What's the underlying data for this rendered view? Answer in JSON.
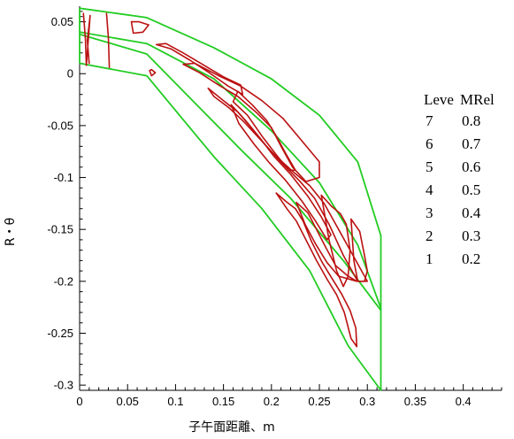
{
  "chart_data": {
    "type": "contour",
    "xlabel": "子午面距離、m",
    "ylabel": "R・θ",
    "xlim": [
      0,
      0.44
    ],
    "ylim": [
      -0.305,
      0.065
    ],
    "x_ticks": [
      0,
      0.05,
      0.1,
      0.15,
      0.2,
      0.25,
      0.3,
      0.35,
      0.4
    ],
    "y_ticks": [
      0.05,
      0,
      -0.05,
      -0.1,
      -0.15,
      -0.2,
      -0.25,
      -0.3
    ],
    "x_tick_labels": [
      "0",
      "0.05",
      "0.1",
      "0.15",
      "0.2",
      "0.25",
      "0.3",
      "0.35",
      "0.4"
    ],
    "y_tick_labels": [
      "0.05",
      "0",
      "-0.05",
      "-0.1",
      "-0.15",
      "-0.2",
      "-0.25",
      "-0.3"
    ],
    "legend": {
      "headers": [
        "Leve",
        "MRel"
      ],
      "rows": [
        {
          "level": "7",
          "value": "0.8"
        },
        {
          "level": "6",
          "value": "0.7"
        },
        {
          "level": "5",
          "value": "0.6"
        },
        {
          "level": "4",
          "value": "0.5"
        },
        {
          "level": "3",
          "value": "0.4"
        },
        {
          "level": "2",
          "value": "0.3"
        },
        {
          "level": "1",
          "value": "0.2"
        }
      ]
    },
    "colors": {
      "boundary": "#22cc22",
      "contour": "#bb1111"
    },
    "boundaries": [
      {
        "name": "blade-passage-1",
        "points": [
          [
            0,
            0.063
          ],
          [
            0.07,
            0.054
          ],
          [
            0.14,
            0.025
          ],
          [
            0.2,
            -0.005
          ],
          [
            0.25,
            -0.04
          ],
          [
            0.29,
            -0.085
          ],
          [
            0.3141,
            -0.156
          ],
          [
            0.3141,
            -0.228
          ],
          [
            0.275,
            -0.18
          ],
          [
            0.22,
            -0.12
          ],
          [
            0.17,
            -0.075
          ],
          [
            0.12,
            -0.028
          ],
          [
            0.07,
            0.019
          ],
          [
            0,
            0.038
          ]
        ]
      },
      {
        "name": "blade-passage-2",
        "points": [
          [
            0,
            0.04
          ],
          [
            0.07,
            0.029
          ],
          [
            0.14,
            -0.005
          ],
          [
            0.2,
            -0.055
          ],
          [
            0.25,
            -0.105
          ],
          [
            0.29,
            -0.165
          ],
          [
            0.3141,
            -0.226
          ],
          [
            0.3141,
            -0.305
          ],
          [
            0.28,
            -0.262
          ],
          [
            0.24,
            -0.19
          ],
          [
            0.19,
            -0.13
          ],
          [
            0.14,
            -0.08
          ],
          [
            0.07,
            -0.002
          ],
          [
            0,
            0.01
          ]
        ]
      },
      {
        "name": "inlet-line",
        "points": [
          [
            0,
            0.063
          ],
          [
            0,
            0.01
          ]
        ]
      }
    ],
    "contours": [
      {
        "level": 2,
        "points": [
          [
            0.004,
            0.058
          ],
          [
            0.006,
            0.034
          ],
          [
            0.007,
            0.008
          ],
          [
            0.011,
            0.056
          ],
          [
            0.008,
            0.032
          ],
          [
            0.01,
            0.01
          ]
        ]
      },
      {
        "level": 3,
        "points": [
          [
            0.028,
            0.058
          ],
          [
            0.03,
            0.035
          ],
          [
            0.031,
            0.006
          ]
        ]
      },
      {
        "level": 4,
        "points": [
          [
            0.054,
            0.05
          ],
          [
            0.056,
            0.039
          ],
          [
            0.066,
            0.04
          ],
          [
            0.072,
            0.047
          ],
          [
            0.062,
            0.05
          ],
          [
            0.054,
            0.05
          ]
        ]
      },
      {
        "level": 5,
        "points": [
          [
            0.08,
            0.028
          ],
          [
            0.095,
            0.024
          ],
          [
            0.115,
            0.013
          ],
          [
            0.135,
            0.001
          ],
          [
            0.155,
            -0.012
          ],
          [
            0.17,
            -0.02
          ],
          [
            0.168,
            -0.011
          ],
          [
            0.15,
            -0.003
          ],
          [
            0.128,
            0.009
          ],
          [
            0.108,
            0.02
          ],
          [
            0.09,
            0.029
          ],
          [
            0.08,
            0.028
          ]
        ]
      },
      {
        "level": 6,
        "points": [
          [
            0.073,
            0.003
          ],
          [
            0.075,
            -0.002
          ],
          [
            0.079,
            0.001
          ],
          [
            0.075,
            0.004
          ],
          [
            0.073,
            0.003
          ]
        ]
      },
      {
        "level": 5,
        "points": [
          [
            0.108,
            0.009
          ],
          [
            0.125,
            0.001
          ],
          [
            0.145,
            -0.011
          ],
          [
            0.165,
            -0.022
          ],
          [
            0.185,
            -0.038
          ],
          [
            0.2,
            -0.052
          ],
          [
            0.21,
            -0.07
          ],
          [
            0.222,
            -0.09
          ],
          [
            0.236,
            -0.104
          ],
          [
            0.25,
            -0.1
          ],
          [
            0.25,
            -0.085
          ],
          [
            0.232,
            -0.065
          ],
          [
            0.212,
            -0.043
          ],
          [
            0.19,
            -0.026
          ],
          [
            0.168,
            -0.012
          ],
          [
            0.145,
            -0.002
          ],
          [
            0.12,
            0.01
          ],
          [
            0.108,
            0.009
          ]
        ]
      },
      {
        "level": 4,
        "points": [
          [
            0.165,
            -0.017
          ],
          [
            0.18,
            -0.03
          ],
          [
            0.195,
            -0.045
          ],
          [
            0.205,
            -0.06
          ],
          [
            0.215,
            -0.077
          ],
          [
            0.225,
            -0.093
          ],
          [
            0.218,
            -0.093
          ],
          [
            0.205,
            -0.078
          ],
          [
            0.19,
            -0.06
          ],
          [
            0.175,
            -0.04
          ],
          [
            0.16,
            -0.027
          ],
          [
            0.165,
            -0.017
          ]
        ]
      },
      {
        "level": 4,
        "points": [
          [
            0.134,
            -0.014
          ],
          [
            0.15,
            -0.026
          ],
          [
            0.165,
            -0.037
          ],
          [
            0.18,
            -0.053
          ],
          [
            0.195,
            -0.07
          ],
          [
            0.212,
            -0.087
          ],
          [
            0.23,
            -0.104
          ],
          [
            0.245,
            -0.12
          ],
          [
            0.26,
            -0.145
          ],
          [
            0.275,
            -0.175
          ],
          [
            0.29,
            -0.2
          ],
          [
            0.3,
            -0.2
          ],
          [
            0.285,
            -0.175
          ],
          [
            0.27,
            -0.15
          ],
          [
            0.255,
            -0.125
          ],
          [
            0.24,
            -0.108
          ],
          [
            0.222,
            -0.094
          ],
          [
            0.203,
            -0.078
          ],
          [
            0.188,
            -0.063
          ],
          [
            0.172,
            -0.047
          ],
          [
            0.156,
            -0.033
          ],
          [
            0.14,
            -0.022
          ],
          [
            0.134,
            -0.014
          ]
        ]
      },
      {
        "level": 3,
        "points": [
          [
            0.158,
            -0.03
          ],
          [
            0.173,
            -0.045
          ],
          [
            0.188,
            -0.062
          ],
          [
            0.203,
            -0.08
          ],
          [
            0.22,
            -0.097
          ],
          [
            0.238,
            -0.118
          ],
          [
            0.252,
            -0.138
          ],
          [
            0.262,
            -0.155
          ],
          [
            0.258,
            -0.16
          ],
          [
            0.246,
            -0.142
          ],
          [
            0.232,
            -0.123
          ],
          [
            0.215,
            -0.103
          ],
          [
            0.198,
            -0.086
          ],
          [
            0.182,
            -0.068
          ],
          [
            0.166,
            -0.048
          ],
          [
            0.158,
            -0.03
          ]
        ]
      },
      {
        "level": 5,
        "points": [
          [
            0.252,
            -0.117
          ],
          [
            0.263,
            -0.128
          ],
          [
            0.272,
            -0.135
          ],
          [
            0.278,
            -0.145
          ],
          [
            0.282,
            -0.17
          ],
          [
            0.28,
            -0.195
          ],
          [
            0.275,
            -0.205
          ],
          [
            0.268,
            -0.19
          ],
          [
            0.26,
            -0.16
          ],
          [
            0.252,
            -0.117
          ]
        ]
      },
      {
        "level": 4,
        "points": [
          [
            0.283,
            -0.14
          ],
          [
            0.292,
            -0.152
          ],
          [
            0.297,
            -0.175
          ],
          [
            0.3,
            -0.19
          ],
          [
            0.297,
            -0.2
          ],
          [
            0.29,
            -0.2
          ],
          [
            0.286,
            -0.18
          ],
          [
            0.283,
            -0.14
          ]
        ]
      },
      {
        "level": 3,
        "points": [
          [
            0.205,
            -0.115
          ],
          [
            0.215,
            -0.123
          ],
          [
            0.225,
            -0.13
          ],
          [
            0.233,
            -0.142
          ],
          [
            0.242,
            -0.162
          ],
          [
            0.253,
            -0.182
          ],
          [
            0.263,
            -0.197
          ],
          [
            0.273,
            -0.212
          ],
          [
            0.282,
            -0.228
          ],
          [
            0.288,
            -0.245
          ],
          [
            0.289,
            -0.263
          ],
          [
            0.283,
            -0.255
          ],
          [
            0.276,
            -0.23
          ],
          [
            0.268,
            -0.213
          ],
          [
            0.258,
            -0.198
          ],
          [
            0.247,
            -0.18
          ],
          [
            0.236,
            -0.16
          ],
          [
            0.226,
            -0.142
          ],
          [
            0.216,
            -0.13
          ],
          [
            0.205,
            -0.115
          ]
        ]
      },
      {
        "level": 3,
        "points": [
          [
            0.226,
            -0.124
          ],
          [
            0.238,
            -0.134
          ],
          [
            0.247,
            -0.15
          ],
          [
            0.257,
            -0.168
          ],
          [
            0.267,
            -0.185
          ],
          [
            0.28,
            -0.195
          ],
          [
            0.289,
            -0.2
          ],
          [
            0.27,
            -0.195
          ],
          [
            0.258,
            -0.182
          ],
          [
            0.246,
            -0.164
          ],
          [
            0.235,
            -0.145
          ],
          [
            0.226,
            -0.124
          ]
        ]
      }
    ]
  }
}
